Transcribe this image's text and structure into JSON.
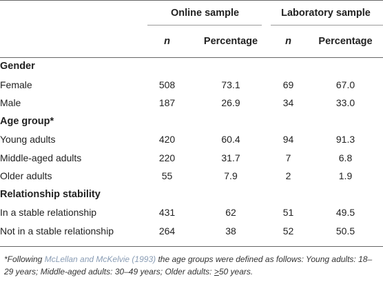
{
  "table": {
    "group_headers": {
      "online": "Online sample",
      "laboratory": "Laboratory sample"
    },
    "column_headers": {
      "online_n": "n",
      "online_pct": "Percentage",
      "lab_n": "n",
      "lab_pct": "Percentage"
    },
    "sections": [
      {
        "title": "Gender",
        "rows": [
          {
            "label": "Female",
            "online_n": "508",
            "online_pct": "73.1",
            "lab_n": "69",
            "lab_pct": "67.0"
          },
          {
            "label": "Male",
            "online_n": "187",
            "online_pct": "26.9",
            "lab_n": "34",
            "lab_pct": "33.0"
          }
        ]
      },
      {
        "title": "Age group*",
        "rows": [
          {
            "label": "Young adults",
            "online_n": "420",
            "online_pct": "60.4",
            "lab_n": "94",
            "lab_pct": "91.3"
          },
          {
            "label": "Middle-aged adults",
            "online_n": "220",
            "online_pct": "31.7",
            "lab_n": "7",
            "lab_pct": "6.8"
          },
          {
            "label": "Older adults",
            "online_n": "55",
            "online_pct": "7.9",
            "lab_n": "2",
            "lab_pct": "1.9"
          }
        ]
      },
      {
        "title": "Relationship stability",
        "rows": [
          {
            "label": "In a stable relationship",
            "online_n": "431",
            "online_pct": "62",
            "lab_n": "51",
            "lab_pct": "49.5"
          },
          {
            "label": "Not in a stable relationship",
            "online_n": "264",
            "online_pct": "38",
            "lab_n": "52",
            "lab_pct": "50.5"
          }
        ]
      }
    ]
  },
  "footnote": {
    "prefix": "*Following ",
    "citation": "McLellan and McKelvie (1993)",
    "middle": " the age groups were defined as follows: Young adults: 18–29 years; Middle-aged adults: 30–49 years; Older adults: ",
    "ge_symbol": ">",
    "suffix": "50 years."
  }
}
